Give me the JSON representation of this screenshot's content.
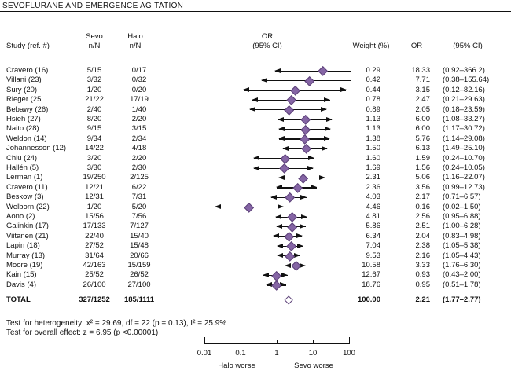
{
  "title": "SEVOFLURANE AND EMERGENCE AGITATION",
  "columns": {
    "study": "Study (ref. #)",
    "sevo_line1": "Sevo",
    "sevo_line2": "n/N",
    "halo_line1": "Halo",
    "halo_line2": "n/N",
    "or_plot_line1": "OR",
    "or_plot_line2": "(95% CI)",
    "weight": "Weight (%)",
    "or": "OR",
    "ci": "(95% CI)"
  },
  "footer": {
    "heterogeneity": "Test for heterogeneity: x² = 29.69, df = 22 (p = 0.13), I² = 25.9%",
    "overall": "Test for overall effect: z = 6.95 (p <0.00001)"
  },
  "colors": {
    "diamond_fill": "#8565A5",
    "diamond_border": "#5C4178",
    "line": "#111111"
  },
  "chart_data": {
    "type": "forest",
    "title": "SEVOFLURANE AND EMERGENCE AGITATION",
    "x_scale": "log",
    "x_range": [
      0.01,
      100
    ],
    "x_ticks": [
      0.01,
      0.1,
      1,
      10,
      100
    ],
    "x_tick_labels": [
      "0.01",
      "0.1",
      "1",
      "10",
      "100"
    ],
    "x_left_label": "Halo worse",
    "x_right_label": "Sevo worse",
    "rows": [
      {
        "study": "Cravero (16)",
        "sevo": "5/15",
        "halo": "0/17",
        "weight": "0.29",
        "or": "18.33",
        "ci": "(0.92–366.2)",
        "or_val": 18.33,
        "ci_low": 0.92,
        "ci_high": 366.2
      },
      {
        "study": "Villani (23)",
        "sevo": "3/32",
        "halo": "0/32",
        "weight": "0.42",
        "or": "7.71",
        "ci": "(0.38–155.64)",
        "or_val": 7.71,
        "ci_low": 0.38,
        "ci_high": 155.64
      },
      {
        "study": "Sury (20)",
        "sevo": "1/20",
        "halo": "0/20",
        "weight": "0.44",
        "or": "3.15",
        "ci": "(0.12–82.16)",
        "or_val": 3.15,
        "ci_low": 0.12,
        "ci_high": 82.16
      },
      {
        "study": "Rieger (25",
        "sevo": "21/22",
        "halo": "17/19",
        "weight": "0.78",
        "or": "2.47",
        "ci": "(0.21–29.63)",
        "or_val": 2.47,
        "ci_low": 0.21,
        "ci_high": 29.63
      },
      {
        "study": "Bebawy (26)",
        "sevo": "2/40",
        "halo": "1/40",
        "weight": "0.89",
        "or": "2.05",
        "ci": "(0.18–23.59)",
        "or_val": 2.05,
        "ci_low": 0.18,
        "ci_high": 23.59
      },
      {
        "study": "Hsieh (27)",
        "sevo": "8/20",
        "halo": "2/20",
        "weight": "1.13",
        "or": "6.00",
        "ci": "(1.08–33.27)",
        "or_val": 6.0,
        "ci_low": 1.08,
        "ci_high": 33.27
      },
      {
        "study": "Naito (28)",
        "sevo": "9/15",
        "halo": "3/15",
        "weight": "1.13",
        "or": "6.00",
        "ci": "(1.17–30.72)",
        "or_val": 6.0,
        "ci_low": 1.17,
        "ci_high": 30.72
      },
      {
        "study": "Weldon (14)",
        "sevo": "9/34",
        "halo": "2/34",
        "weight": "1.38",
        "or": "5.76",
        "ci": "(1.14–29.08)",
        "or_val": 5.76,
        "ci_low": 1.14,
        "ci_high": 29.08
      },
      {
        "study": "Johannesson (12)",
        "sevo": "14/22",
        "halo": "4/18",
        "weight": "1.50",
        "or": "6.13",
        "ci": "(1.49–25.10)",
        "or_val": 6.13,
        "ci_low": 1.49,
        "ci_high": 25.1
      },
      {
        "study": "Chiu (24)",
        "sevo": "3/20",
        "halo": "2/20",
        "weight": "1.60",
        "or": "1.59",
        "ci": "(0.24–10.70)",
        "or_val": 1.59,
        "ci_low": 0.24,
        "ci_high": 10.7
      },
      {
        "study": "Hallén (5)",
        "sevo": "3/30",
        "halo": "2/30",
        "weight": "1.69",
        "or": "1.56",
        "ci": "(0.24–10.05)",
        "or_val": 1.56,
        "ci_low": 0.24,
        "ci_high": 10.05
      },
      {
        "study": "Lerman (1)",
        "sevo": "19/250",
        "halo": "2/125",
        "weight": "2.31",
        "or": "5.06",
        "ci": "(1.16–22.07)",
        "or_val": 5.06,
        "ci_low": 1.16,
        "ci_high": 22.07
      },
      {
        "study": "Cravero (11)",
        "sevo": "12/21",
        "halo": "6/22",
        "weight": "2.36",
        "or": "3.56",
        "ci": "(0.99–12.73)",
        "or_val": 3.56,
        "ci_low": 0.99,
        "ci_high": 12.73
      },
      {
        "study": "Beskow (3)",
        "sevo": "12/31",
        "halo": "7/31",
        "weight": "4.03",
        "or": "2.17",
        "ci": "(0.71–6.57)",
        "or_val": 2.17,
        "ci_low": 0.71,
        "ci_high": 6.57
      },
      {
        "study": "Welborn (22)",
        "sevo": "1/20",
        "halo": "5/20",
        "weight": "4.46",
        "or": "0.16",
        "ci": "(0.02–1.50)",
        "or_val": 0.16,
        "ci_low": 0.02,
        "ci_high": 1.5
      },
      {
        "study": "Aono (2)",
        "sevo": "15/56",
        "halo": "7/56",
        "weight": "4.81",
        "or": "2.56",
        "ci": "(0.95–6.88)",
        "or_val": 2.56,
        "ci_low": 0.95,
        "ci_high": 6.88
      },
      {
        "study": "Galinkin (17)",
        "sevo": "17/133",
        "halo": "7/127",
        "weight": "5.86",
        "or": "2.51",
        "ci": "(1.00–6.28)",
        "or_val": 2.51,
        "ci_low": 1.0,
        "ci_high": 6.28
      },
      {
        "study": "Viitanen (21)",
        "sevo": "22/40",
        "halo": "15/40",
        "weight": "6.34",
        "or": "2.04",
        "ci": "(0.83–4.98)",
        "or_val": 2.04,
        "ci_low": 0.83,
        "ci_high": 4.98
      },
      {
        "study": "Lapin (18)",
        "sevo": "27/52",
        "halo": "15/48",
        "weight": "7.04",
        "or": "2.38",
        "ci": "(1.05–5.38)",
        "or_val": 2.38,
        "ci_low": 1.05,
        "ci_high": 5.38
      },
      {
        "study": "Murray (13)",
        "sevo": "31/64",
        "halo": "20/66",
        "weight": "9.53",
        "or": "2.16",
        "ci": "(1.05–4.43)",
        "or_val": 2.16,
        "ci_low": 1.05,
        "ci_high": 4.43
      },
      {
        "study": "Moore (19)",
        "sevo": "42/163",
        "halo": "15/159",
        "weight": "10.58",
        "or": "3.33",
        "ci": "(1.76–6.30)",
        "or_val": 3.33,
        "ci_low": 1.76,
        "ci_high": 6.3
      },
      {
        "study": "Kain (15)",
        "sevo": "25/52",
        "halo": "26/52",
        "weight": "12.67",
        "or": "0.93",
        "ci": "(0.43–2.00)",
        "or_val": 0.93,
        "ci_low": 0.43,
        "ci_high": 2.0
      },
      {
        "study": "Davis (4)",
        "sevo": "26/100",
        "halo": "27/100",
        "weight": "18.76",
        "or": "0.95",
        "ci": "(0.51–1.78)",
        "or_val": 0.95,
        "ci_low": 0.51,
        "ci_high": 1.78
      }
    ],
    "total": {
      "study": "TOTAL",
      "sevo": "327/1252",
      "halo": "185/1111",
      "weight": "100.00",
      "or": "2.21",
      "ci": "(1.77–2.77)",
      "or_val": 2.21,
      "ci_low": 1.77,
      "ci_high": 2.77
    }
  }
}
